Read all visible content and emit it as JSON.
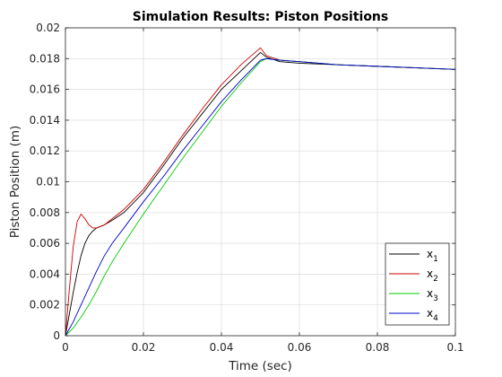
{
  "chart_data": {
    "type": "line",
    "title": "Simulation Results: Piston Positions",
    "xlabel": "Time (sec)",
    "ylabel": "Piston Position (m)",
    "xlim": [
      0,
      0.1
    ],
    "ylim": [
      0,
      0.02
    ],
    "xticks": [
      "0",
      "0.02",
      "0.04",
      "0.06",
      "0.08",
      "0.1"
    ],
    "yticks": [
      "0",
      "0.002",
      "0.004",
      "0.006",
      "0.008",
      "0.01",
      "0.012",
      "0.014",
      "0.016",
      "0.018",
      "0.02"
    ],
    "grid": true,
    "legend_position": "bottom-right",
    "series": [
      {
        "name": "x1",
        "base": "x",
        "sub": "1",
        "color": "#000000",
        "x": [
          0,
          0.001,
          0.002,
          0.003,
          0.004,
          0.005,
          0.006,
          0.007,
          0.008,
          0.009,
          0.01,
          0.012,
          0.015,
          0.02,
          0.025,
          0.03,
          0.035,
          0.04,
          0.045,
          0.05,
          0.0515,
          0.055,
          0.06,
          0.07,
          0.08,
          0.09,
          0.1
        ],
        "y": [
          0,
          0.0014,
          0.0028,
          0.0041,
          0.0052,
          0.006,
          0.0065,
          0.0068,
          0.007,
          0.0071,
          0.0072,
          0.0075,
          0.008,
          0.0093,
          0.011,
          0.0128,
          0.0144,
          0.016,
          0.0172,
          0.0184,
          0.0181,
          0.0178,
          0.0177,
          0.0176,
          0.0175,
          0.0174,
          0.0173
        ]
      },
      {
        "name": "x2",
        "base": "x",
        "sub": "2",
        "color": "#cc0000",
        "x": [
          0,
          0.001,
          0.002,
          0.003,
          0.004,
          0.005,
          0.006,
          0.007,
          0.008,
          0.009,
          0.01,
          0.012,
          0.015,
          0.02,
          0.025,
          0.03,
          0.035,
          0.04,
          0.045,
          0.05,
          0.0515,
          0.055,
          0.06,
          0.07,
          0.08,
          0.09,
          0.1
        ],
        "y": [
          0,
          0.003,
          0.0058,
          0.0074,
          0.0079,
          0.0076,
          0.0072,
          0.007,
          0.007,
          0.0071,
          0.0072,
          0.0076,
          0.0082,
          0.0095,
          0.0112,
          0.013,
          0.0147,
          0.0163,
          0.0176,
          0.0187,
          0.0182,
          0.0179,
          0.0178,
          0.0176,
          0.0175,
          0.0174,
          0.0173
        ]
      },
      {
        "name": "x3",
        "base": "x",
        "sub": "3",
        "color": "#00cc00",
        "x": [
          0,
          0.002,
          0.004,
          0.006,
          0.008,
          0.01,
          0.012,
          0.015,
          0.02,
          0.025,
          0.03,
          0.035,
          0.04,
          0.045,
          0.05,
          0.0515,
          0.055,
          0.06,
          0.07,
          0.08,
          0.09,
          0.1
        ],
        "y": [
          0,
          0.0005,
          0.0012,
          0.002,
          0.0029,
          0.0039,
          0.0048,
          0.006,
          0.0079,
          0.0097,
          0.0115,
          0.0132,
          0.0149,
          0.0164,
          0.0178,
          0.018,
          0.0179,
          0.0178,
          0.0176,
          0.0175,
          0.0174,
          0.0173
        ]
      },
      {
        "name": "x4",
        "base": "x",
        "sub": "4",
        "color": "#0000cc",
        "x": [
          0,
          0.002,
          0.004,
          0.006,
          0.008,
          0.01,
          0.012,
          0.015,
          0.02,
          0.025,
          0.03,
          0.035,
          0.04,
          0.045,
          0.05,
          0.0515,
          0.055,
          0.06,
          0.07,
          0.08,
          0.09,
          0.1
        ],
        "y": [
          0,
          0.0009,
          0.002,
          0.0031,
          0.0042,
          0.0052,
          0.006,
          0.007,
          0.0087,
          0.0103,
          0.012,
          0.0136,
          0.0152,
          0.0166,
          0.0179,
          0.018,
          0.0179,
          0.0178,
          0.0176,
          0.0175,
          0.0174,
          0.0173
        ]
      }
    ]
  }
}
